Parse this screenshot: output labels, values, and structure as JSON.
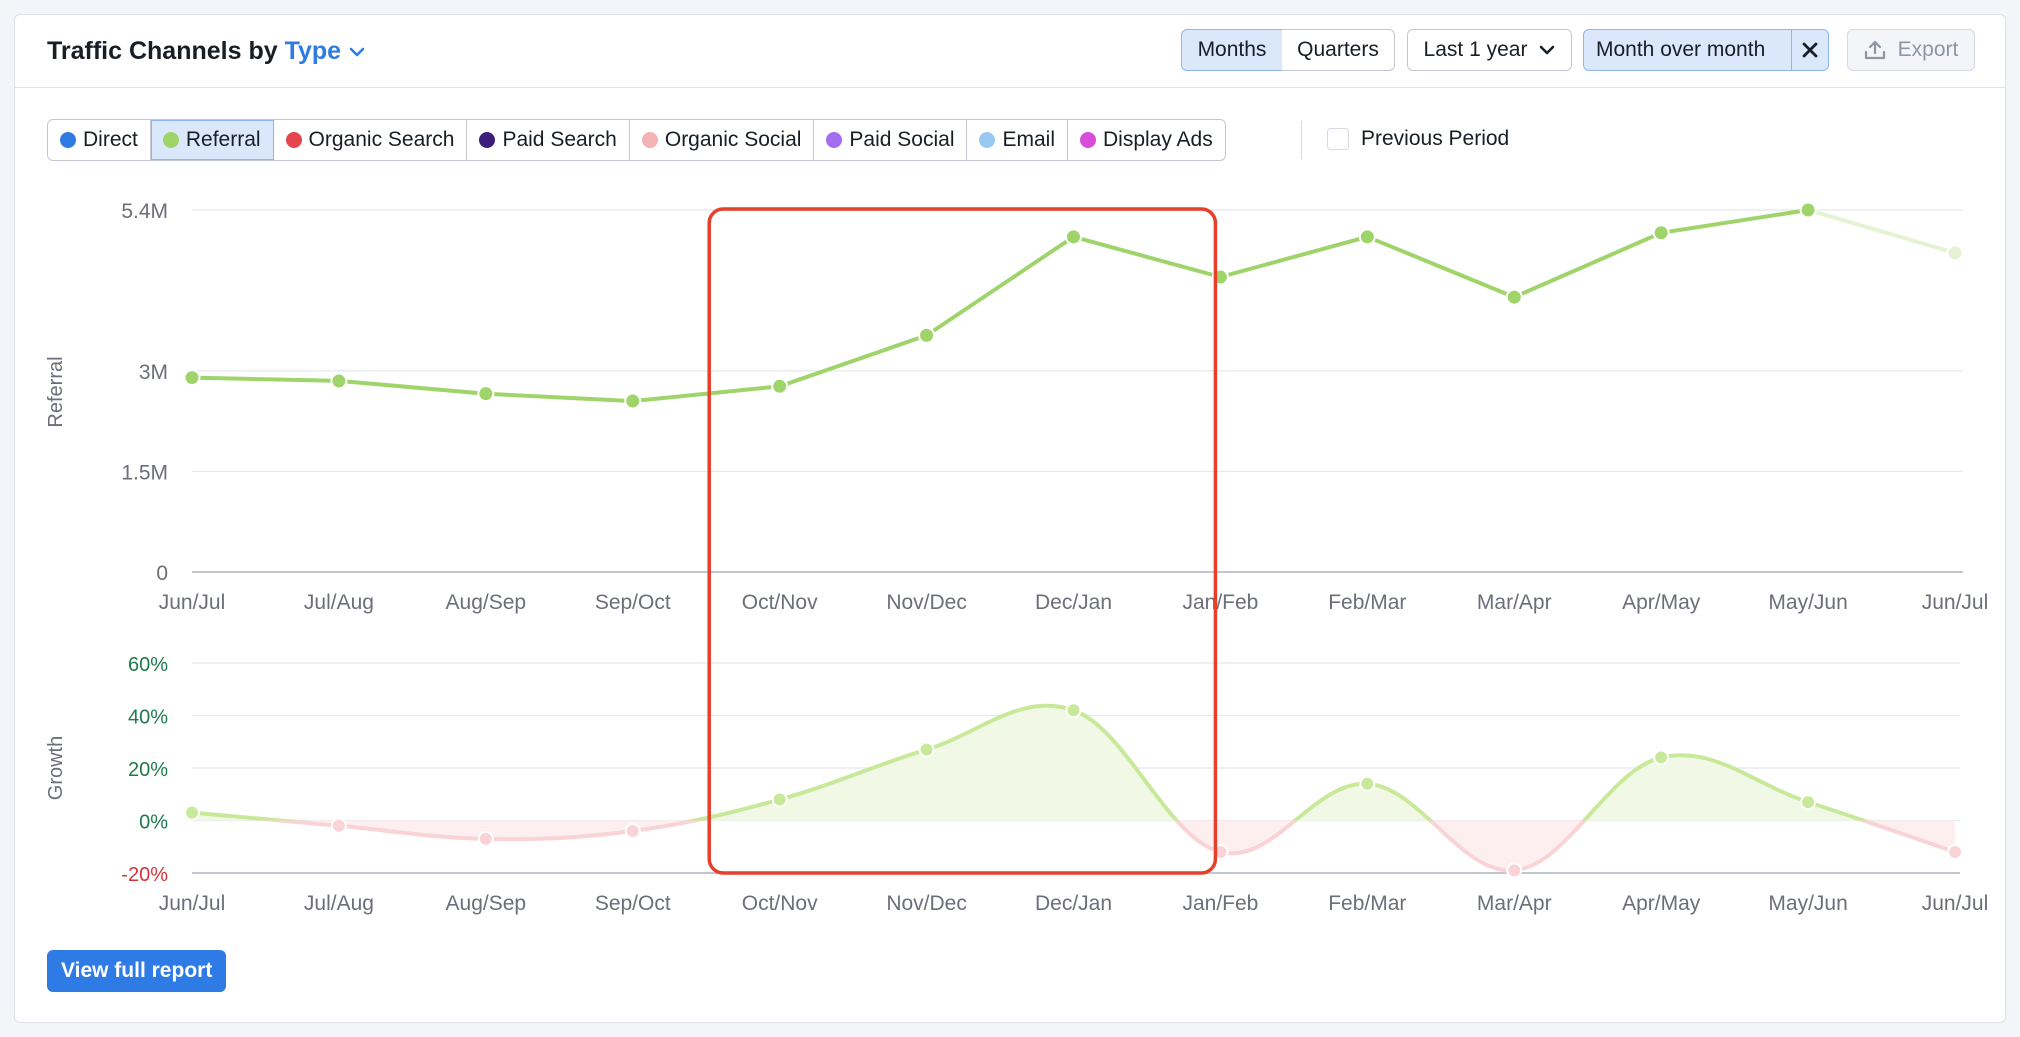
{
  "header": {
    "title_prefix": "Traffic Channels by",
    "title_type": "Type",
    "period_tabs": [
      "Months",
      "Quarters"
    ],
    "range": "Last 1 year",
    "comparison": "Month over month",
    "export": "Export"
  },
  "legend": [
    {
      "label": "Direct",
      "color": "#2e7be6",
      "active": false
    },
    {
      "label": "Referral",
      "color": "#9fd46a",
      "active": true
    },
    {
      "label": "Organic Search",
      "color": "#e5454c",
      "active": false
    },
    {
      "label": "Paid Search",
      "color": "#3c1d7c",
      "active": false
    },
    {
      "label": "Organic Social",
      "color": "#f3b2b6",
      "active": false
    },
    {
      "label": "Paid Social",
      "color": "#a36cf1",
      "active": false
    },
    {
      "label": "Email",
      "color": "#99c9f3",
      "active": false
    },
    {
      "label": "Display Ads",
      "color": "#d94bd9",
      "active": false
    }
  ],
  "previous_period": "Previous Period",
  "view_full_report": "View full report",
  "chart_data": [
    {
      "type": "line",
      "ylabel": "Referral",
      "x": [
        "Jun/Jul",
        "Jul/Aug",
        "Aug/Sep",
        "Sep/Oct",
        "Oct/Nov",
        "Nov/Dec",
        "Dec/Jan",
        "Jan/Feb",
        "Feb/Mar",
        "Mar/Apr",
        "Apr/May",
        "May/Jun",
        "Jun/Jul"
      ],
      "series": [
        {
          "values": [
            2.9,
            2.85,
            2.66,
            2.55,
            2.77,
            3.53,
            5.0,
            4.4,
            5.0,
            4.1,
            5.06,
            5.4,
            4.76
          ]
        }
      ],
      "yticks": [
        "0",
        "1.5M",
        "3M",
        "5.4M"
      ],
      "ytick_values": [
        0,
        1.5,
        3,
        5.4
      ],
      "ylim": [
        0,
        5.4
      ],
      "color": "#9fd46a",
      "last_point_partial": true
    },
    {
      "type": "area",
      "ylabel": "Growth",
      "x": [
        "Jun/Jul",
        "Jul/Aug",
        "Aug/Sep",
        "Sep/Oct",
        "Oct/Nov",
        "Nov/Dec",
        "Dec/Jan",
        "Jan/Feb",
        "Feb/Mar",
        "Mar/Apr",
        "Apr/May",
        "May/Jun",
        "Jun/Jul"
      ],
      "series": [
        {
          "values": [
            3,
            -2,
            -7,
            -4,
            8,
            27,
            42,
            -12,
            14,
            -19,
            24,
            7,
            -12
          ]
        }
      ],
      "yticks": [
        "-20%",
        "0%",
        "20%",
        "40%",
        "60%"
      ],
      "ytick_values": [
        -20,
        0,
        20,
        40,
        60
      ],
      "ylim": [
        -20,
        60
      ],
      "positive_color": "#c9e99a",
      "negative_color": "#f9d3d6"
    }
  ],
  "highlight": {
    "from": "Oct/Nov",
    "to": "Jan/Feb",
    "color": "#e5402b"
  }
}
